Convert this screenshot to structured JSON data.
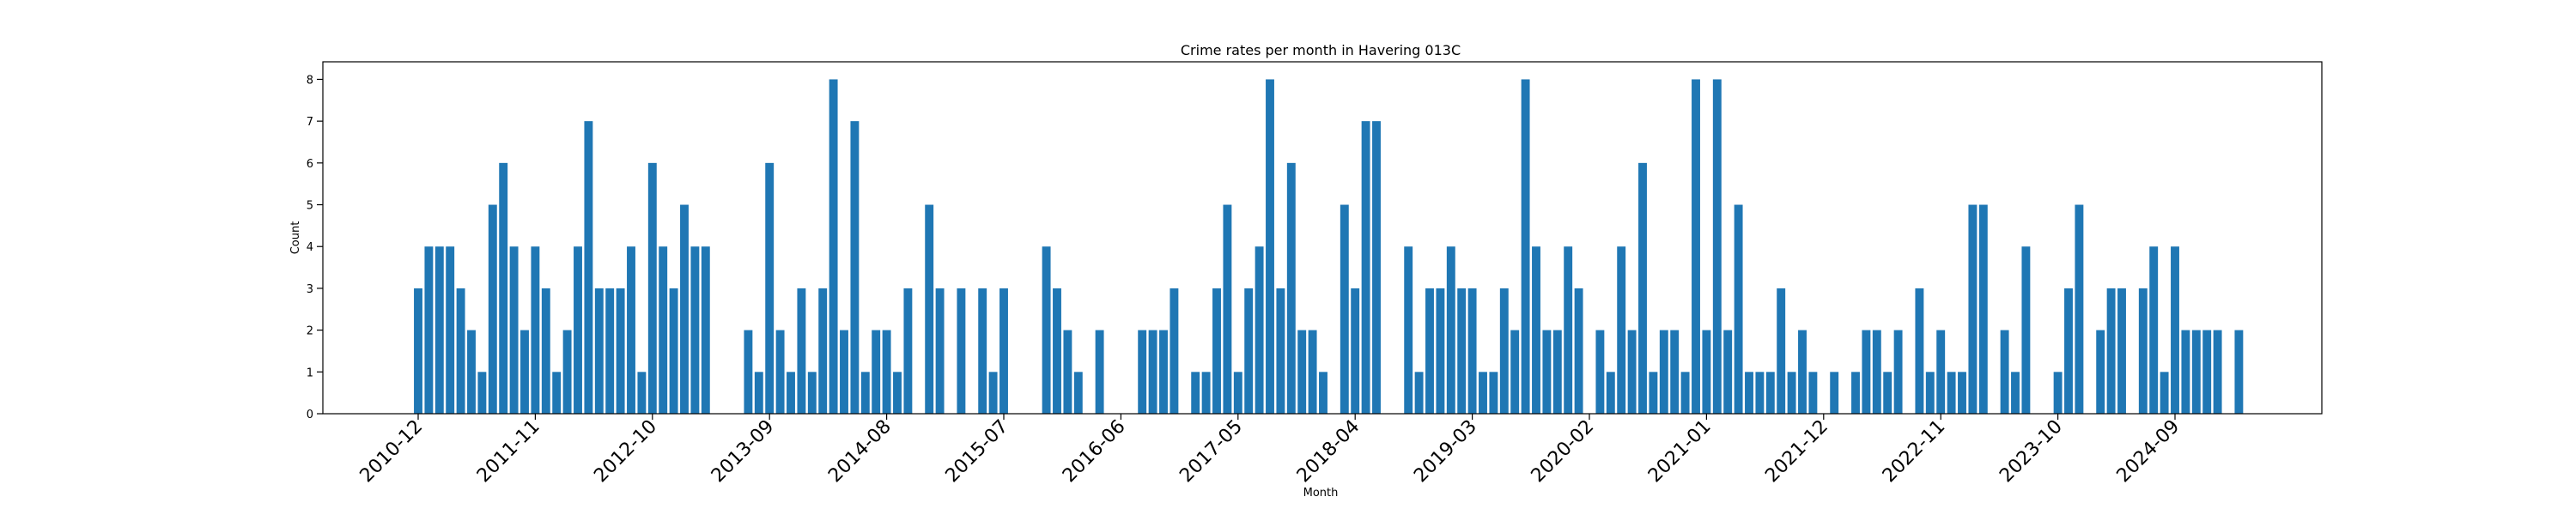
{
  "chart_data": {
    "type": "bar",
    "title": "Crime rates per month in Havering 013C",
    "xlabel": "Month",
    "ylabel": "Count",
    "ylim": [
      0,
      8.42
    ],
    "yticks": [
      0,
      1,
      2,
      3,
      4,
      5,
      6,
      7,
      8
    ],
    "xtick_labels": [
      "2010-12",
      "2011-11",
      "2012-10",
      "2013-09",
      "2014-08",
      "2015-07",
      "2016-06",
      "2017-05",
      "2018-04",
      "2019-03",
      "2020-02",
      "2021-01",
      "2021-12",
      "2022-11",
      "2023-10",
      "2024-09"
    ],
    "xtick_every": 11,
    "bar_color": "#1f77b4",
    "grid": false,
    "legend": "none",
    "values": [
      3,
      4,
      4,
      4,
      3,
      2,
      1,
      5,
      6,
      4,
      2,
      4,
      3,
      1,
      2,
      4,
      7,
      3,
      3,
      3,
      4,
      1,
      6,
      4,
      3,
      5,
      4,
      4,
      0,
      0,
      0,
      2,
      1,
      6,
      2,
      1,
      3,
      1,
      3,
      8,
      2,
      7,
      1,
      2,
      2,
      1,
      3,
      0,
      5,
      3,
      0,
      3,
      0,
      3,
      1,
      3,
      0,
      0,
      0,
      4,
      3,
      2,
      1,
      0,
      2,
      0,
      0,
      0,
      2,
      2,
      2,
      3,
      0,
      1,
      1,
      3,
      5,
      1,
      3,
      4,
      8,
      3,
      6,
      2,
      2,
      1,
      0,
      5,
      3,
      7,
      7,
      0,
      0,
      4,
      1,
      3,
      3,
      4,
      3,
      3,
      1,
      1,
      3,
      2,
      8,
      4,
      2,
      2,
      4,
      3,
      0,
      2,
      1,
      4,
      2,
      6,
      1,
      2,
      2,
      1,
      8,
      2,
      8,
      2,
      5,
      1,
      1,
      1,
      3,
      1,
      2,
      1,
      0,
      1,
      0,
      1,
      2,
      2,
      1,
      2,
      0,
      3,
      1,
      2,
      1,
      1,
      5,
      5,
      0,
      2,
      1,
      4,
      0,
      0,
      1,
      3,
      5,
      0,
      2,
      3,
      3,
      0,
      3,
      4,
      1,
      4,
      2,
      2,
      2,
      2,
      0,
      2
    ]
  }
}
